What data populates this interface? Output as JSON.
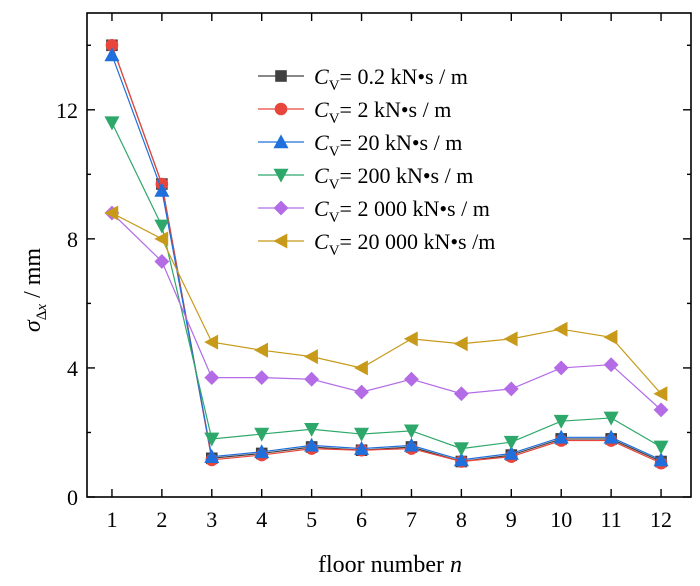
{
  "chart_data": {
    "type": "line",
    "title": "",
    "xlabel": "floor number n",
    "ylabel": "σΔx / mm",
    "x": [
      1,
      2,
      3,
      4,
      5,
      6,
      7,
      8,
      9,
      10,
      11,
      12
    ],
    "xlim": [
      0.5,
      12.6
    ],
    "ylim": [
      0,
      15
    ],
    "yticks": [
      0,
      4,
      8,
      12
    ],
    "legend_position": "top-right",
    "grid": false,
    "series": [
      {
        "name": "CV= 0.2 kN•s / m",
        "marker": "square",
        "color": "#404040",
        "values": [
          14.0,
          9.7,
          1.2,
          1.35,
          1.55,
          1.45,
          1.55,
          1.1,
          1.3,
          1.8,
          1.8,
          1.1
        ]
      },
      {
        "name": "CV= 2 kN•s / m",
        "marker": "circle",
        "color": "#e8463c",
        "values": [
          14.0,
          9.7,
          1.15,
          1.3,
          1.5,
          1.45,
          1.5,
          1.1,
          1.25,
          1.75,
          1.75,
          1.05
        ]
      },
      {
        "name": "CV= 20 kN•s / m",
        "marker": "triangle-up",
        "color": "#1f6fdc",
        "values": [
          13.7,
          9.5,
          1.25,
          1.4,
          1.6,
          1.5,
          1.6,
          1.15,
          1.35,
          1.85,
          1.85,
          1.15
        ]
      },
      {
        "name": "CV= 200 kN•s / m",
        "marker": "triangle-down",
        "color": "#2ea86a",
        "values": [
          11.6,
          8.4,
          1.8,
          1.95,
          2.1,
          1.95,
          2.05,
          1.5,
          1.7,
          2.35,
          2.45,
          1.55
        ]
      },
      {
        "name": "CV= 2 000 kN•s / m",
        "marker": "diamond",
        "color": "#b36be6",
        "values": [
          8.8,
          7.3,
          3.7,
          3.7,
          3.65,
          3.25,
          3.65,
          3.2,
          3.35,
          4.0,
          4.1,
          2.7
        ]
      },
      {
        "name": "CV= 20 000 kN•s /m",
        "marker": "triangle-left",
        "color": "#c89a1a",
        "values": [
          8.8,
          8.0,
          4.8,
          4.55,
          4.35,
          4.0,
          4.9,
          4.75,
          4.9,
          5.2,
          4.95,
          3.2
        ]
      }
    ]
  }
}
